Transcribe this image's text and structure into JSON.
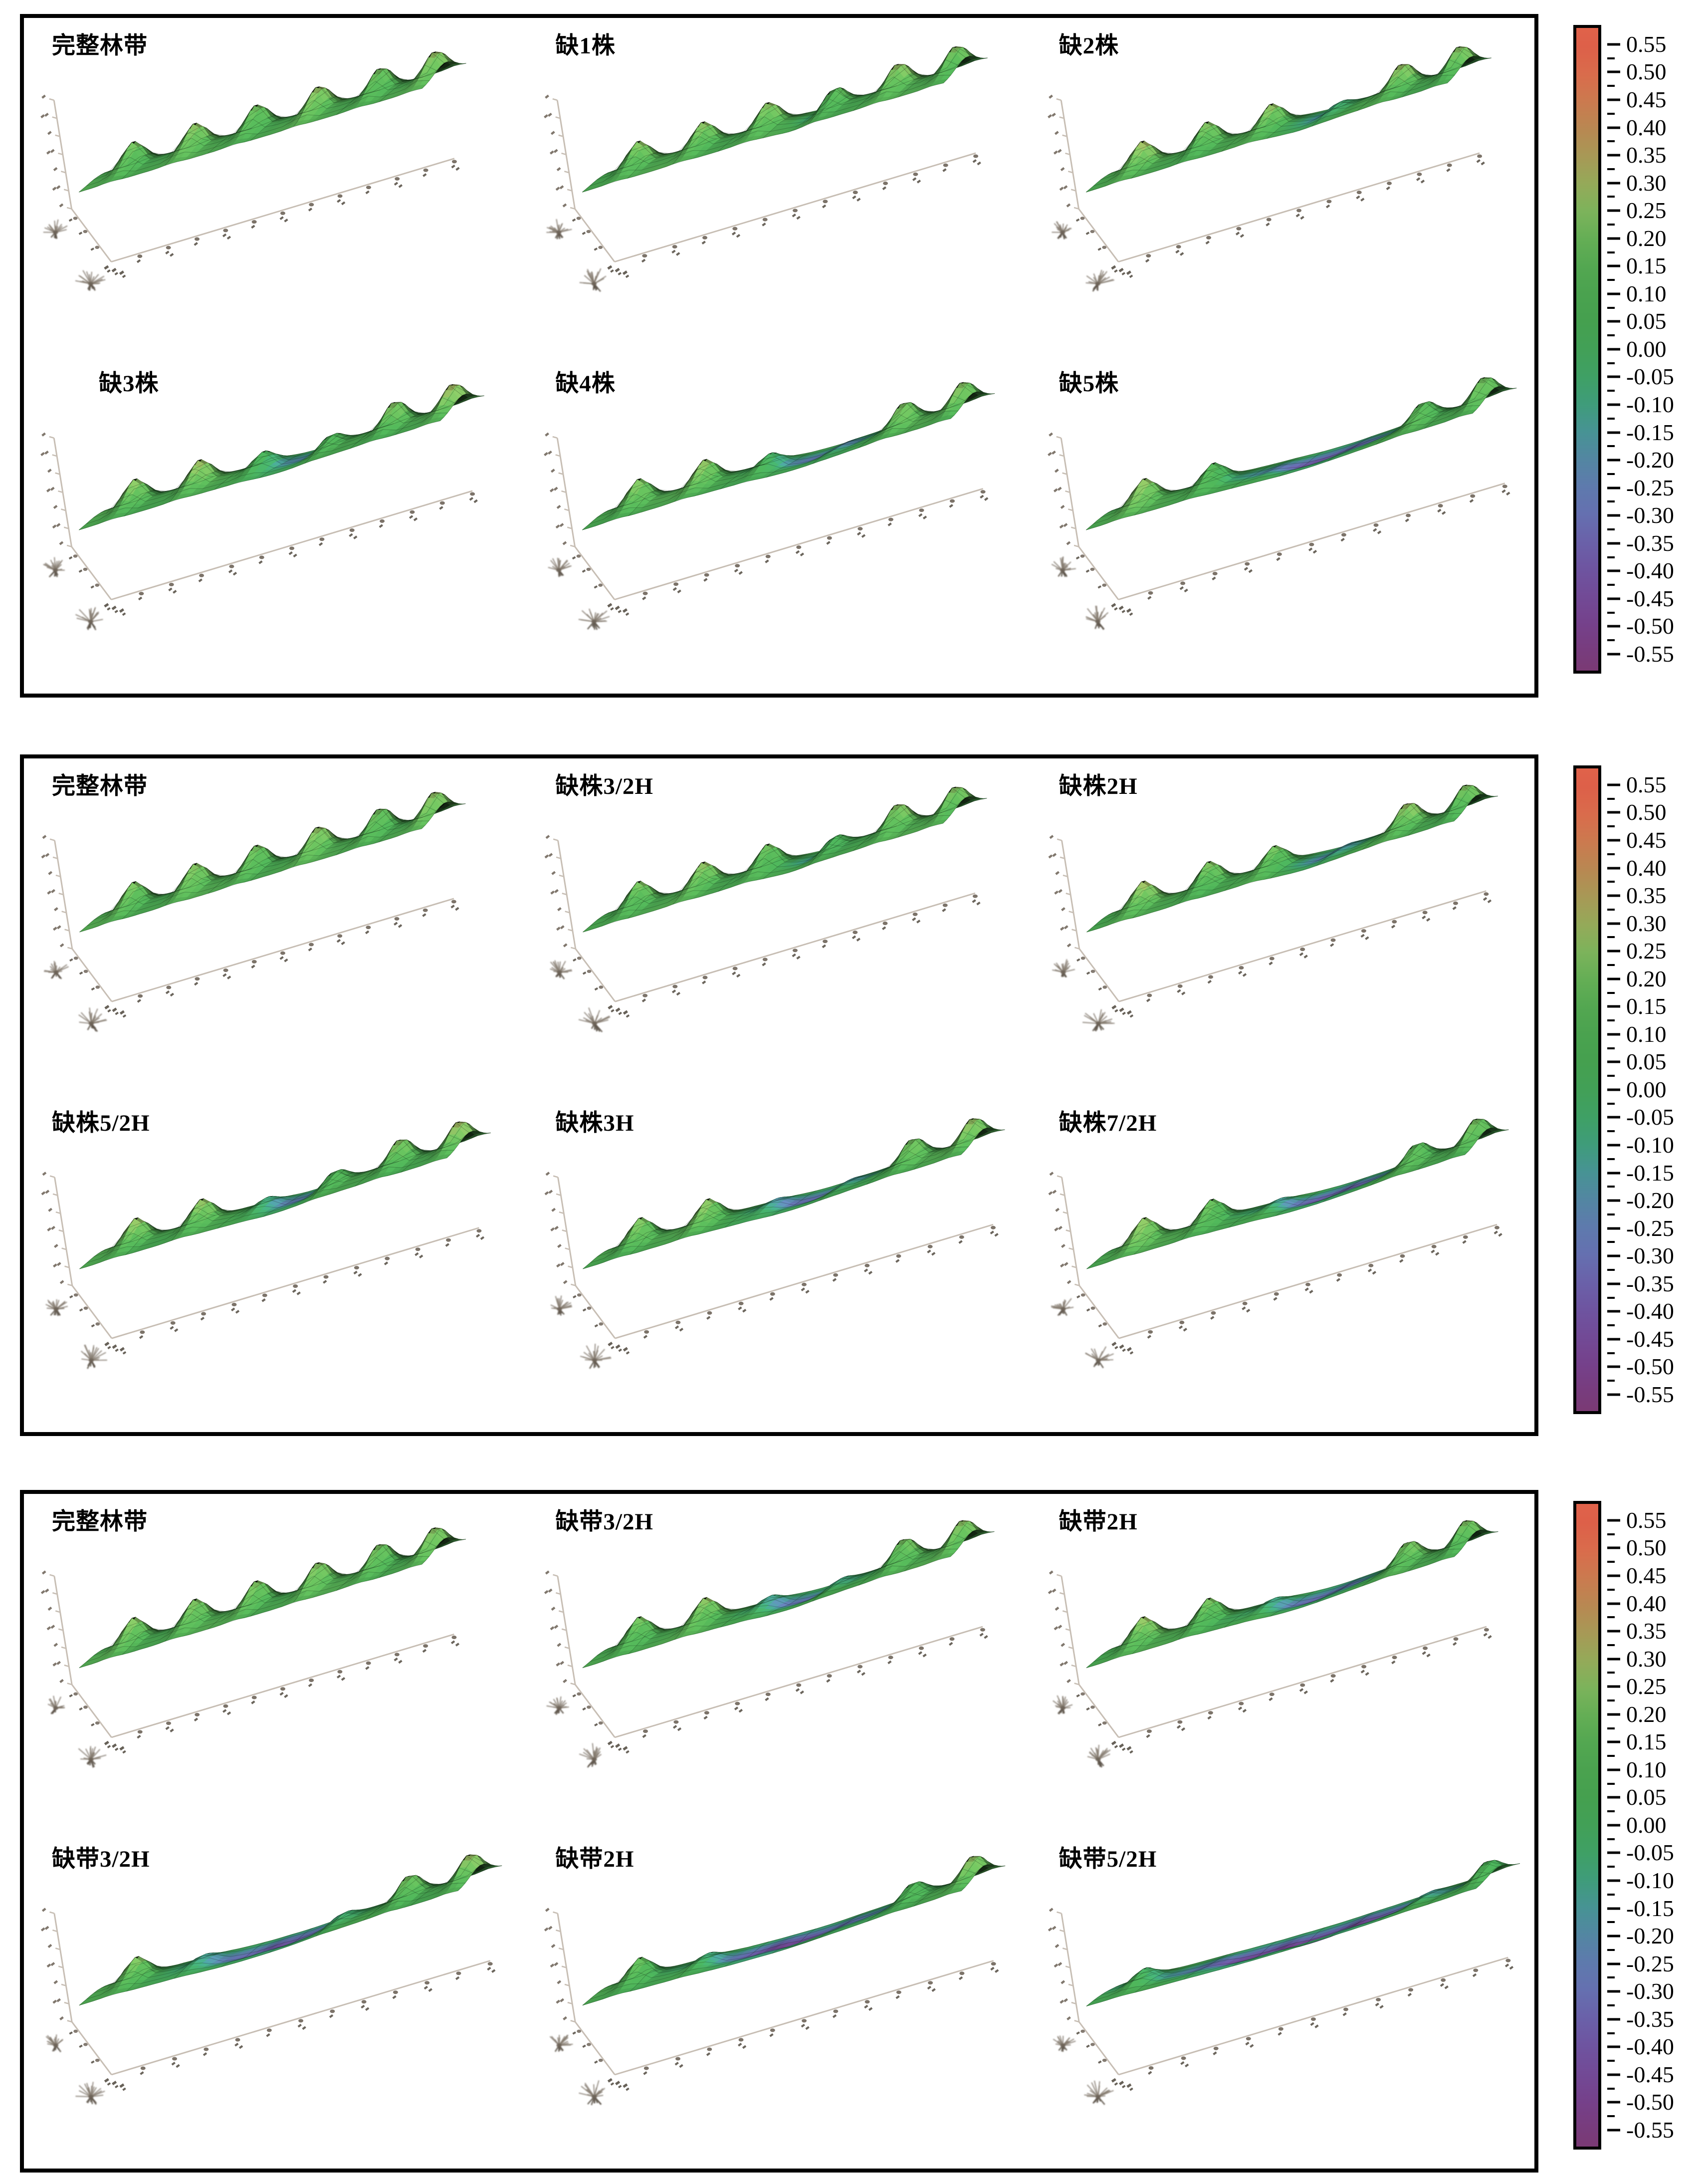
{
  "chart_data": {
    "type": "surface",
    "description": "Three panels of 3D wind-speed reduction surfaces over shelterbelt configurations; green = positive reduction, teal/blue/purple = negative (gap regions).",
    "legend_position": "right",
    "grid": true,
    "panels": [
      {
        "subplots": [
          {
            "label": "完整林带",
            "gap_center": 0.0,
            "gap_width": 0.0,
            "gap_depth": 0.0,
            "scale": 0.95,
            "seed": 1
          },
          {
            "label": "缺1株",
            "gap_center": 0.58,
            "gap_width": 0.05,
            "gap_depth": 0.22,
            "scale": 1.0,
            "seed": 2
          },
          {
            "label": "缺2株",
            "gap_center": 0.6,
            "gap_width": 0.09,
            "gap_depth": 0.3,
            "scale": 1.0,
            "seed": 3
          },
          {
            "label": "缺3株",
            "gap_center": 0.55,
            "gap_width": 0.12,
            "gap_depth": 0.3,
            "scale": 1.0,
            "seed": 4
          },
          {
            "label": "缺4株",
            "gap_center": 0.58,
            "gap_width": 0.15,
            "gap_depth": 0.4,
            "scale": 1.02,
            "seed": 5
          },
          {
            "label": "缺5株",
            "gap_center": 0.55,
            "gap_width": 0.2,
            "gap_depth": 0.52,
            "scale": 1.07,
            "seed": 6
          }
        ]
      },
      {
        "subplots": [
          {
            "label": "完整林带",
            "gap_center": 0.0,
            "gap_width": 0.0,
            "gap_depth": 0.0,
            "scale": 0.95,
            "seed": 7
          },
          {
            "label": "缺株3/2H",
            "gap_center": 0.58,
            "gap_width": 0.08,
            "gap_depth": 0.28,
            "scale": 1.0,
            "seed": 8
          },
          {
            "label": "缺株2H",
            "gap_center": 0.6,
            "gap_width": 0.11,
            "gap_depth": 0.36,
            "scale": 1.02,
            "seed": 9
          },
          {
            "label": "缺株5/2H",
            "gap_center": 0.52,
            "gap_width": 0.13,
            "gap_depth": 0.34,
            "scale": 1.02,
            "seed": 10
          },
          {
            "label": "缺株3H",
            "gap_center": 0.55,
            "gap_width": 0.16,
            "gap_depth": 0.44,
            "scale": 1.05,
            "seed": 11
          },
          {
            "label": "缺株7/2H",
            "gap_center": 0.58,
            "gap_width": 0.18,
            "gap_depth": 0.5,
            "scale": 1.05,
            "seed": 12
          }
        ]
      },
      {
        "subplots": [
          {
            "label": "完整林带",
            "gap_center": 0.0,
            "gap_width": 0.0,
            "gap_depth": 0.0,
            "scale": 0.95,
            "seed": 13
          },
          {
            "label": "缺带3/2H",
            "gap_center": 0.55,
            "gap_width": 0.14,
            "gap_depth": 0.42,
            "scale": 1.02,
            "seed": 14
          },
          {
            "label": "缺带2H",
            "gap_center": 0.57,
            "gap_width": 0.16,
            "gap_depth": 0.5,
            "scale": 1.02,
            "seed": 15
          },
          {
            "label": "缺带3/2H",
            "gap_center": 0.45,
            "gap_width": 0.22,
            "gap_depth": 0.55,
            "scale": 1.05,
            "seed": 16
          },
          {
            "label": "缺带2H",
            "gap_center": 0.5,
            "gap_width": 0.26,
            "gap_depth": 0.58,
            "scale": 1.05,
            "seed": 17
          },
          {
            "label": "缺带5/2H",
            "gap_center": 0.5,
            "gap_width": 0.38,
            "gap_depth": 0.62,
            "scale": 1.08,
            "seed": 18
          }
        ]
      }
    ],
    "colorbar": {
      "min": -0.55,
      "max": 0.55,
      "step": 0.05,
      "tick_labels": [
        "0.55",
        "0.50",
        "0.45",
        "0.40",
        "0.35",
        "0.30",
        "0.25",
        "0.20",
        "0.15",
        "0.10",
        "0.05",
        "0.00",
        "-0.05",
        "-0.10",
        "-0.15",
        "-0.20",
        "-0.25",
        "-0.30",
        "-0.35",
        "-0.40",
        "-0.45",
        "-0.50",
        "-0.55"
      ],
      "colormap_stops": [
        [
          0.55,
          "#dd6049"
        ],
        [
          0.5,
          "#d96c4c"
        ],
        [
          0.45,
          "#cb7a4f"
        ],
        [
          0.4,
          "#b88852"
        ],
        [
          0.35,
          "#a79956"
        ],
        [
          0.3,
          "#94aa59"
        ],
        [
          0.25,
          "#7cb35b"
        ],
        [
          0.2,
          "#64ae55"
        ],
        [
          0.15,
          "#53a751"
        ],
        [
          0.1,
          "#4aa24f"
        ],
        [
          0.05,
          "#45a04f"
        ],
        [
          0.0,
          "#42a057"
        ],
        [
          -0.05,
          "#3fa065"
        ],
        [
          -0.1,
          "#3f9c7a"
        ],
        [
          -0.15,
          "#479394"
        ],
        [
          -0.2,
          "#5386a2"
        ],
        [
          -0.25,
          "#5e7aad"
        ],
        [
          -0.3,
          "#6570b0"
        ],
        [
          -0.35,
          "#6a61a9"
        ],
        [
          -0.4,
          "#6e54a0"
        ],
        [
          -0.45,
          "#724a96"
        ],
        [
          -0.5,
          "#75418b"
        ],
        [
          -0.55,
          "#783c7d"
        ]
      ],
      "bar_top_color": "#e0624a",
      "bar_bottom_color": "#7a3a74"
    }
  }
}
